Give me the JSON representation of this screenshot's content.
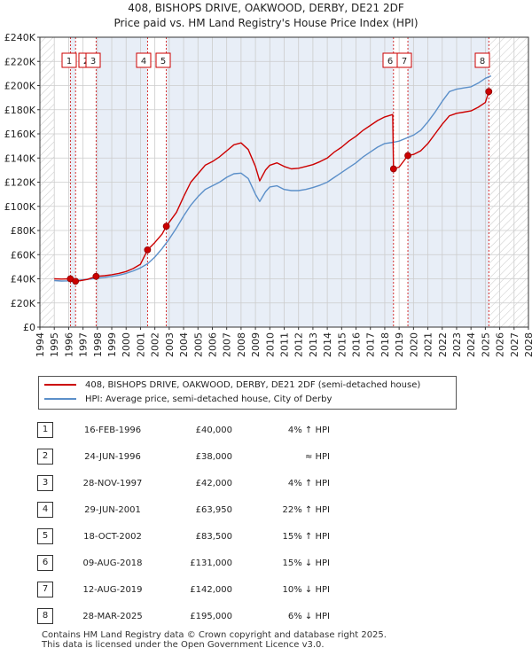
{
  "title_line1": "408, BISHOPS DRIVE, OAKWOOD, DERBY, DE21 2DF",
  "title_line2": "Price paid vs. HM Land Registry's House Price Index (HPI)",
  "legend": {
    "property": "408, BISHOPS DRIVE, OAKWOOD, DERBY, DE21 2DF (semi-detached house)",
    "hpi": "HPI: Average price, semi-detached house, City of Derby"
  },
  "colors": {
    "property": "#cc0000",
    "hpi": "#5b8fc9",
    "grid": "#cccccc",
    "shade": "#e8eef7",
    "marker": "#cc0000"
  },
  "chart_data": {
    "type": "line",
    "x_range": [
      1994,
      2028
    ],
    "y_range": [
      0,
      240000
    ],
    "x_ticks": [
      "1994",
      "1995",
      "1996",
      "1997",
      "1998",
      "1999",
      "2000",
      "2001",
      "2002",
      "2003",
      "2004",
      "2005",
      "2006",
      "2007",
      "2008",
      "2009",
      "2010",
      "2011",
      "2012",
      "2013",
      "2014",
      "2015",
      "2016",
      "2017",
      "2018",
      "2019",
      "2020",
      "2021",
      "2022",
      "2023",
      "2024",
      "2025",
      "2026",
      "2027",
      "2028"
    ],
    "y_ticks": [
      {
        "value": 0,
        "label": "£0"
      },
      {
        "value": 20000,
        "label": "£20K"
      },
      {
        "value": 40000,
        "label": "£40K"
      },
      {
        "value": 60000,
        "label": "£60K"
      },
      {
        "value": 80000,
        "label": "£80K"
      },
      {
        "value": 100000,
        "label": "£100K"
      },
      {
        "value": 120000,
        "label": "£120K"
      },
      {
        "value": 140000,
        "label": "£140K"
      },
      {
        "value": 160000,
        "label": "£160K"
      },
      {
        "value": 180000,
        "label": "£180K"
      },
      {
        "value": 200000,
        "label": "£200K"
      },
      {
        "value": 220000,
        "label": "£220K"
      },
      {
        "value": 240000,
        "label": "£240K"
      }
    ],
    "hatched_ranges": [
      [
        1994,
        1995.0
      ],
      [
        2025.24,
        2028
      ]
    ],
    "series": [
      {
        "name": "HPI: Average price, semi-detached house, City of Derby",
        "color": "#5b8fc9",
        "points": [
          [
            1995.0,
            38500
          ],
          [
            1995.5,
            38200
          ],
          [
            1996.0,
            38300
          ],
          [
            1996.5,
            38600
          ],
          [
            1997.0,
            39200
          ],
          [
            1997.5,
            39800
          ],
          [
            1998.0,
            40500
          ],
          [
            1998.5,
            41200
          ],
          [
            1999.0,
            42000
          ],
          [
            1999.5,
            43000
          ],
          [
            2000.0,
            44500
          ],
          [
            2000.5,
            46500
          ],
          [
            2001.0,
            49000
          ],
          [
            2001.5,
            52500
          ],
          [
            2002.0,
            58000
          ],
          [
            2002.5,
            65000
          ],
          [
            2003.0,
            73000
          ],
          [
            2003.5,
            82000
          ],
          [
            2004.0,
            92000
          ],
          [
            2004.5,
            101000
          ],
          [
            2005.0,
            108000
          ],
          [
            2005.5,
            114000
          ],
          [
            2006.0,
            117000
          ],
          [
            2006.5,
            120000
          ],
          [
            2007.0,
            124000
          ],
          [
            2007.5,
            127000
          ],
          [
            2008.0,
            127500
          ],
          [
            2008.5,
            123000
          ],
          [
            2009.0,
            110000
          ],
          [
            2009.3,
            104000
          ],
          [
            2009.7,
            112000
          ],
          [
            2010.0,
            116000
          ],
          [
            2010.5,
            117000
          ],
          [
            2011.0,
            114000
          ],
          [
            2011.5,
            113000
          ],
          [
            2012.0,
            113000
          ],
          [
            2012.5,
            114000
          ],
          [
            2013.0,
            115500
          ],
          [
            2013.5,
            117500
          ],
          [
            2014.0,
            120000
          ],
          [
            2014.5,
            124000
          ],
          [
            2015.0,
            128000
          ],
          [
            2015.5,
            132000
          ],
          [
            2016.0,
            136000
          ],
          [
            2016.5,
            141000
          ],
          [
            2017.0,
            145000
          ],
          [
            2017.5,
            149000
          ],
          [
            2018.0,
            152000
          ],
          [
            2018.6,
            153000
          ],
          [
            2019.0,
            154000
          ],
          [
            2019.6,
            157000
          ],
          [
            2020.0,
            159000
          ],
          [
            2020.5,
            163000
          ],
          [
            2021.0,
            170000
          ],
          [
            2021.5,
            178000
          ],
          [
            2022.0,
            187000
          ],
          [
            2022.5,
            195000
          ],
          [
            2023.0,
            197000
          ],
          [
            2023.5,
            198000
          ],
          [
            2024.0,
            199000
          ],
          [
            2024.5,
            202000
          ],
          [
            2025.0,
            206000
          ],
          [
            2025.4,
            208000
          ]
        ]
      },
      {
        "name": "408, BISHOPS DRIVE, OAKWOOD, DERBY, DE21 2DF (semi-detached house)",
        "color": "#cc0000",
        "points": [
          [
            1995.0,
            40000
          ],
          [
            1995.5,
            39800
          ],
          [
            1996.12,
            40000
          ],
          [
            1996.48,
            38000
          ],
          [
            1996.8,
            38400
          ],
          [
            1997.3,
            39500
          ],
          [
            1997.91,
            42000
          ],
          [
            1998.5,
            42600
          ],
          [
            1999.0,
            43400
          ],
          [
            1999.5,
            44500
          ],
          [
            2000.0,
            46000
          ],
          [
            2000.5,
            48500
          ],
          [
            2001.0,
            52000
          ],
          [
            2001.49,
            63950
          ],
          [
            2002.0,
            70000
          ],
          [
            2002.5,
            77000
          ],
          [
            2002.8,
            83500
          ],
          [
            2003.5,
            95000
          ],
          [
            2004.0,
            108000
          ],
          [
            2004.5,
            120000
          ],
          [
            2005.0,
            127000
          ],
          [
            2005.5,
            134000
          ],
          [
            2006.0,
            137000
          ],
          [
            2006.5,
            141000
          ],
          [
            2007.0,
            146000
          ],
          [
            2007.5,
            151000
          ],
          [
            2008.0,
            152500
          ],
          [
            2008.5,
            147000
          ],
          [
            2009.0,
            133000
          ],
          [
            2009.3,
            121000
          ],
          [
            2009.7,
            130000
          ],
          [
            2010.0,
            134000
          ],
          [
            2010.5,
            136000
          ],
          [
            2011.0,
            133000
          ],
          [
            2011.5,
            131000
          ],
          [
            2012.0,
            131500
          ],
          [
            2012.5,
            133000
          ],
          [
            2013.0,
            134500
          ],
          [
            2013.5,
            137000
          ],
          [
            2014.0,
            140000
          ],
          [
            2014.5,
            145000
          ],
          [
            2015.0,
            149000
          ],
          [
            2015.5,
            154000
          ],
          [
            2016.0,
            158000
          ],
          [
            2016.5,
            163000
          ],
          [
            2017.0,
            167000
          ],
          [
            2017.5,
            171000
          ],
          [
            2018.0,
            174000
          ],
          [
            2018.55,
            176000
          ],
          [
            2018.61,
            131000
          ],
          [
            2019.0,
            132500
          ],
          [
            2019.61,
            142000
          ],
          [
            2020.0,
            143000
          ],
          [
            2020.5,
            146000
          ],
          [
            2021.0,
            152000
          ],
          [
            2021.5,
            160000
          ],
          [
            2022.0,
            168000
          ],
          [
            2022.5,
            175000
          ],
          [
            2023.0,
            177000
          ],
          [
            2023.5,
            178000
          ],
          [
            2024.0,
            179000
          ],
          [
            2024.5,
            182000
          ],
          [
            2025.0,
            186000
          ],
          [
            2025.24,
            195000
          ]
        ]
      }
    ],
    "sales": [
      {
        "n": "1",
        "x": 1996.12,
        "date": "16-FEB-1996",
        "price": "£40,000",
        "value": 40000,
        "hpi": "4% ↑ HPI"
      },
      {
        "n": "2",
        "x": 1996.48,
        "date": "24-JUN-1996",
        "price": "£38,000",
        "value": 38000,
        "hpi": "≈ HPI"
      },
      {
        "n": "3",
        "x": 1997.91,
        "date": "28-NOV-1997",
        "price": "£42,000",
        "value": 42000,
        "hpi": "4% ↑ HPI"
      },
      {
        "n": "4",
        "x": 2001.49,
        "date": "29-JUN-2001",
        "price": "£63,950",
        "value": 63950,
        "hpi": "22% ↑ HPI"
      },
      {
        "n": "5",
        "x": 2002.8,
        "date": "18-OCT-2002",
        "price": "£83,500",
        "value": 83500,
        "hpi": "15% ↑ HPI"
      },
      {
        "n": "6",
        "x": 2018.61,
        "date": "09-AUG-2018",
        "price": "£131,000",
        "value": 131000,
        "hpi": "15% ↓ HPI"
      },
      {
        "n": "7",
        "x": 2019.61,
        "date": "12-AUG-2019",
        "price": "£142,000",
        "value": 142000,
        "hpi": "10% ↓ HPI"
      },
      {
        "n": "8",
        "x": 2025.24,
        "date": "28-MAR-2025",
        "price": "£195,000",
        "value": 195000,
        "hpi": "6% ↓ HPI"
      }
    ]
  },
  "footer_line1": "Contains HM Land Registry data © Crown copyright and database right 2025.",
  "footer_line2": "This data is licensed under the Open Government Licence v3.0."
}
